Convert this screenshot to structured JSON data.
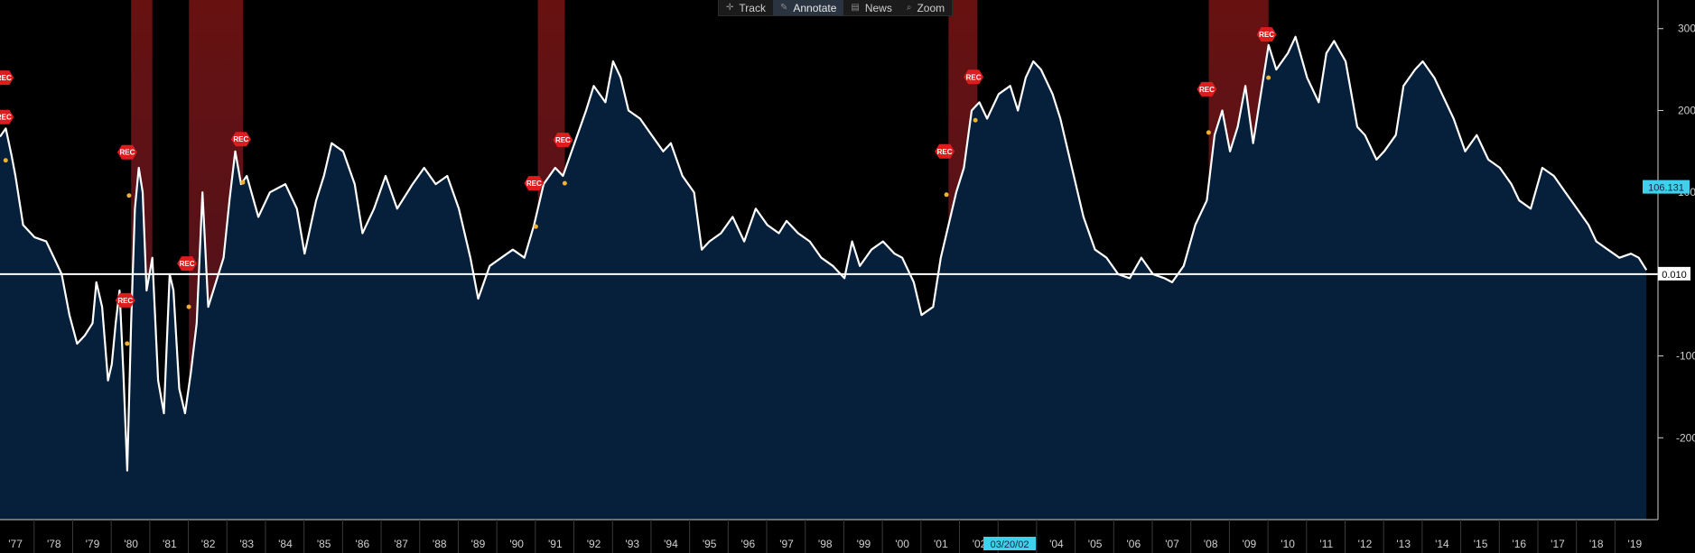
{
  "toolbar": {
    "items": [
      {
        "label": "Track",
        "icon": "crosshair-icon"
      },
      {
        "label": "Annotate",
        "icon": "pencil-icon"
      },
      {
        "label": "News",
        "icon": "news-icon"
      },
      {
        "label": "Zoom",
        "icon": "magnifier-icon"
      }
    ]
  },
  "chart_data": {
    "type": "area",
    "title": "",
    "xlabel": "",
    "ylabel": "",
    "xlim": [
      1976.6,
      2019.6
    ],
    "ylim": [
      -300,
      335
    ],
    "y_ticks": [
      300,
      200,
      100,
      -100,
      -200
    ],
    "x_ticks": [
      "'77",
      "'78",
      "'79",
      "'80",
      "'81",
      "'82",
      "'83",
      "'84",
      "'85",
      "'86",
      "'87",
      "'88",
      "'89",
      "'90",
      "'91",
      "'92",
      "'93",
      "'94",
      "'95",
      "'96",
      "'97",
      "'98",
      "'99",
      "'00",
      "'01",
      "'02",
      "'03",
      "'04",
      "'05",
      "'06",
      "'07",
      "'08",
      "'09",
      "'10",
      "'11",
      "'12",
      "'13",
      "'14",
      "'15",
      "'16",
      "'17",
      "'18",
      "'19"
    ],
    "grid": false,
    "baseline_value": 0.01,
    "current_label": "106.131",
    "baseline_label": "0.010",
    "cursor_date": "03/20/02",
    "cursor_x": 2002.2,
    "recessions": [
      [
        1980.0,
        1980.55
      ],
      [
        1981.5,
        1982.9
      ],
      [
        1990.55,
        1991.25
      ],
      [
        2001.2,
        2001.95
      ],
      [
        2007.95,
        2009.5
      ]
    ],
    "markers": [
      {
        "x": 1976.7,
        "y": 240,
        "label": "REC"
      },
      {
        "x": 1976.7,
        "y": 192,
        "label": "REC"
      },
      {
        "x": 1979.9,
        "y": 149,
        "label": "REC"
      },
      {
        "x": 1979.85,
        "y": -32,
        "label": "REC"
      },
      {
        "x": 1981.45,
        "y": 13,
        "label": "REC"
      },
      {
        "x": 1982.85,
        "y": 165,
        "label": "REC"
      },
      {
        "x": 1990.45,
        "y": 111,
        "label": "REC"
      },
      {
        "x": 1991.2,
        "y": 164,
        "label": "REC"
      },
      {
        "x": 2001.1,
        "y": 150,
        "label": "REC"
      },
      {
        "x": 2001.85,
        "y": 241,
        "label": "REC"
      },
      {
        "x": 2007.9,
        "y": 226,
        "label": "REC"
      },
      {
        "x": 2009.45,
        "y": 293,
        "label": "REC"
      }
    ],
    "series": [
      {
        "values": [
          [
            1976.6,
            168
          ],
          [
            1976.75,
            178
          ],
          [
            1976.9,
            145
          ],
          [
            1977.0,
            120
          ],
          [
            1977.2,
            60
          ],
          [
            1977.5,
            45
          ],
          [
            1977.8,
            40
          ],
          [
            1978.0,
            20
          ],
          [
            1978.2,
            0
          ],
          [
            1978.4,
            -50
          ],
          [
            1978.6,
            -85
          ],
          [
            1978.8,
            -75
          ],
          [
            1979.0,
            -60
          ],
          [
            1979.1,
            -10
          ],
          [
            1979.25,
            -40
          ],
          [
            1979.4,
            -130
          ],
          [
            1979.5,
            -110
          ],
          [
            1979.6,
            -60
          ],
          [
            1979.7,
            -20
          ],
          [
            1979.8,
            -120
          ],
          [
            1979.9,
            -240
          ],
          [
            1980.0,
            -60
          ],
          [
            1980.1,
            80
          ],
          [
            1980.2,
            130
          ],
          [
            1980.3,
            100
          ],
          [
            1980.4,
            -20
          ],
          [
            1980.55,
            20
          ],
          [
            1980.7,
            -130
          ],
          [
            1980.85,
            -170
          ],
          [
            1981.0,
            0
          ],
          [
            1981.1,
            -20
          ],
          [
            1981.25,
            -140
          ],
          [
            1981.4,
            -170
          ],
          [
            1981.55,
            -120
          ],
          [
            1981.7,
            -60
          ],
          [
            1981.85,
            100
          ],
          [
            1982.0,
            -40
          ],
          [
            1982.2,
            -10
          ],
          [
            1982.4,
            20
          ],
          [
            1982.55,
            90
          ],
          [
            1982.7,
            150
          ],
          [
            1982.85,
            110
          ],
          [
            1983.0,
            120
          ],
          [
            1983.3,
            70
          ],
          [
            1983.6,
            100
          ],
          [
            1984.0,
            110
          ],
          [
            1984.3,
            80
          ],
          [
            1984.5,
            25
          ],
          [
            1984.8,
            90
          ],
          [
            1985.0,
            120
          ],
          [
            1985.2,
            160
          ],
          [
            1985.5,
            150
          ],
          [
            1985.8,
            110
          ],
          [
            1986.0,
            50
          ],
          [
            1986.3,
            80
          ],
          [
            1986.6,
            120
          ],
          [
            1986.9,
            80
          ],
          [
            1987.3,
            110
          ],
          [
            1987.6,
            130
          ],
          [
            1987.9,
            110
          ],
          [
            1988.2,
            120
          ],
          [
            1988.5,
            80
          ],
          [
            1988.8,
            20
          ],
          [
            1989.0,
            -30
          ],
          [
            1989.3,
            10
          ],
          [
            1989.6,
            20
          ],
          [
            1989.9,
            30
          ],
          [
            1990.2,
            20
          ],
          [
            1990.45,
            60
          ],
          [
            1990.7,
            110
          ],
          [
            1991.0,
            130
          ],
          [
            1991.2,
            120
          ],
          [
            1991.5,
            160
          ],
          [
            1991.8,
            200
          ],
          [
            1992.0,
            230
          ],
          [
            1992.3,
            210
          ],
          [
            1992.5,
            260
          ],
          [
            1992.7,
            240
          ],
          [
            1992.9,
            200
          ],
          [
            1993.2,
            190
          ],
          [
            1993.5,
            170
          ],
          [
            1993.8,
            150
          ],
          [
            1994.0,
            160
          ],
          [
            1994.3,
            120
          ],
          [
            1994.6,
            100
          ],
          [
            1994.8,
            30
          ],
          [
            1995.0,
            40
          ],
          [
            1995.3,
            50
          ],
          [
            1995.6,
            70
          ],
          [
            1995.9,
            40
          ],
          [
            1996.2,
            80
          ],
          [
            1996.5,
            60
          ],
          [
            1996.8,
            50
          ],
          [
            1997.0,
            65
          ],
          [
            1997.3,
            50
          ],
          [
            1997.6,
            40
          ],
          [
            1997.9,
            20
          ],
          [
            1998.2,
            10
          ],
          [
            1998.5,
            -5
          ],
          [
            1998.7,
            40
          ],
          [
            1998.9,
            10
          ],
          [
            1999.2,
            30
          ],
          [
            1999.5,
            40
          ],
          [
            1999.8,
            25
          ],
          [
            2000.0,
            20
          ],
          [
            2000.3,
            -10
          ],
          [
            2000.5,
            -50
          ],
          [
            2000.8,
            -40
          ],
          [
            2001.0,
            20
          ],
          [
            2001.2,
            60
          ],
          [
            2001.4,
            100
          ],
          [
            2001.6,
            130
          ],
          [
            2001.8,
            200
          ],
          [
            2002.0,
            210
          ],
          [
            2002.2,
            190
          ],
          [
            2002.5,
            220
          ],
          [
            2002.8,
            230
          ],
          [
            2003.0,
            200
          ],
          [
            2003.2,
            240
          ],
          [
            2003.4,
            260
          ],
          [
            2003.6,
            250
          ],
          [
            2003.9,
            220
          ],
          [
            2004.1,
            190
          ],
          [
            2004.4,
            130
          ],
          [
            2004.7,
            70
          ],
          [
            2005.0,
            30
          ],
          [
            2005.3,
            20
          ],
          [
            2005.6,
            0
          ],
          [
            2005.9,
            -5
          ],
          [
            2006.2,
            20
          ],
          [
            2006.5,
            0
          ],
          [
            2006.8,
            -5
          ],
          [
            2007.0,
            -10
          ],
          [
            2007.3,
            10
          ],
          [
            2007.6,
            60
          ],
          [
            2007.9,
            90
          ],
          [
            2008.1,
            170
          ],
          [
            2008.3,
            200
          ],
          [
            2008.5,
            150
          ],
          [
            2008.7,
            180
          ],
          [
            2008.9,
            230
          ],
          [
            2009.1,
            160
          ],
          [
            2009.3,
            220
          ],
          [
            2009.5,
            280
          ],
          [
            2009.7,
            250
          ],
          [
            2010.0,
            270
          ],
          [
            2010.2,
            290
          ],
          [
            2010.5,
            240
          ],
          [
            2010.8,
            210
          ],
          [
            2011.0,
            270
          ],
          [
            2011.2,
            285
          ],
          [
            2011.5,
            260
          ],
          [
            2011.8,
            180
          ],
          [
            2012.0,
            170
          ],
          [
            2012.3,
            140
          ],
          [
            2012.5,
            150
          ],
          [
            2012.8,
            170
          ],
          [
            2013.0,
            230
          ],
          [
            2013.3,
            250
          ],
          [
            2013.5,
            260
          ],
          [
            2013.8,
            240
          ],
          [
            2014.0,
            220
          ],
          [
            2014.3,
            190
          ],
          [
            2014.6,
            150
          ],
          [
            2014.9,
            170
          ],
          [
            2015.2,
            140
          ],
          [
            2015.5,
            130
          ],
          [
            2015.8,
            110
          ],
          [
            2016.0,
            90
          ],
          [
            2016.3,
            80
          ],
          [
            2016.6,
            130
          ],
          [
            2016.9,
            120
          ],
          [
            2017.2,
            100
          ],
          [
            2017.5,
            80
          ],
          [
            2017.8,
            60
          ],
          [
            2018.0,
            40
          ],
          [
            2018.3,
            30
          ],
          [
            2018.6,
            20
          ],
          [
            2018.9,
            25
          ],
          [
            2019.1,
            20
          ],
          [
            2019.3,
            5
          ]
        ]
      }
    ]
  },
  "colors": {
    "background": "#000000",
    "area": "#06203c",
    "line": "#ffffff",
    "recession_band": "#8a1a1a",
    "marker": "#dd1d1d",
    "current_label_bg": "#3fd0ee",
    "baseline_label_bg": "#ffffff"
  }
}
